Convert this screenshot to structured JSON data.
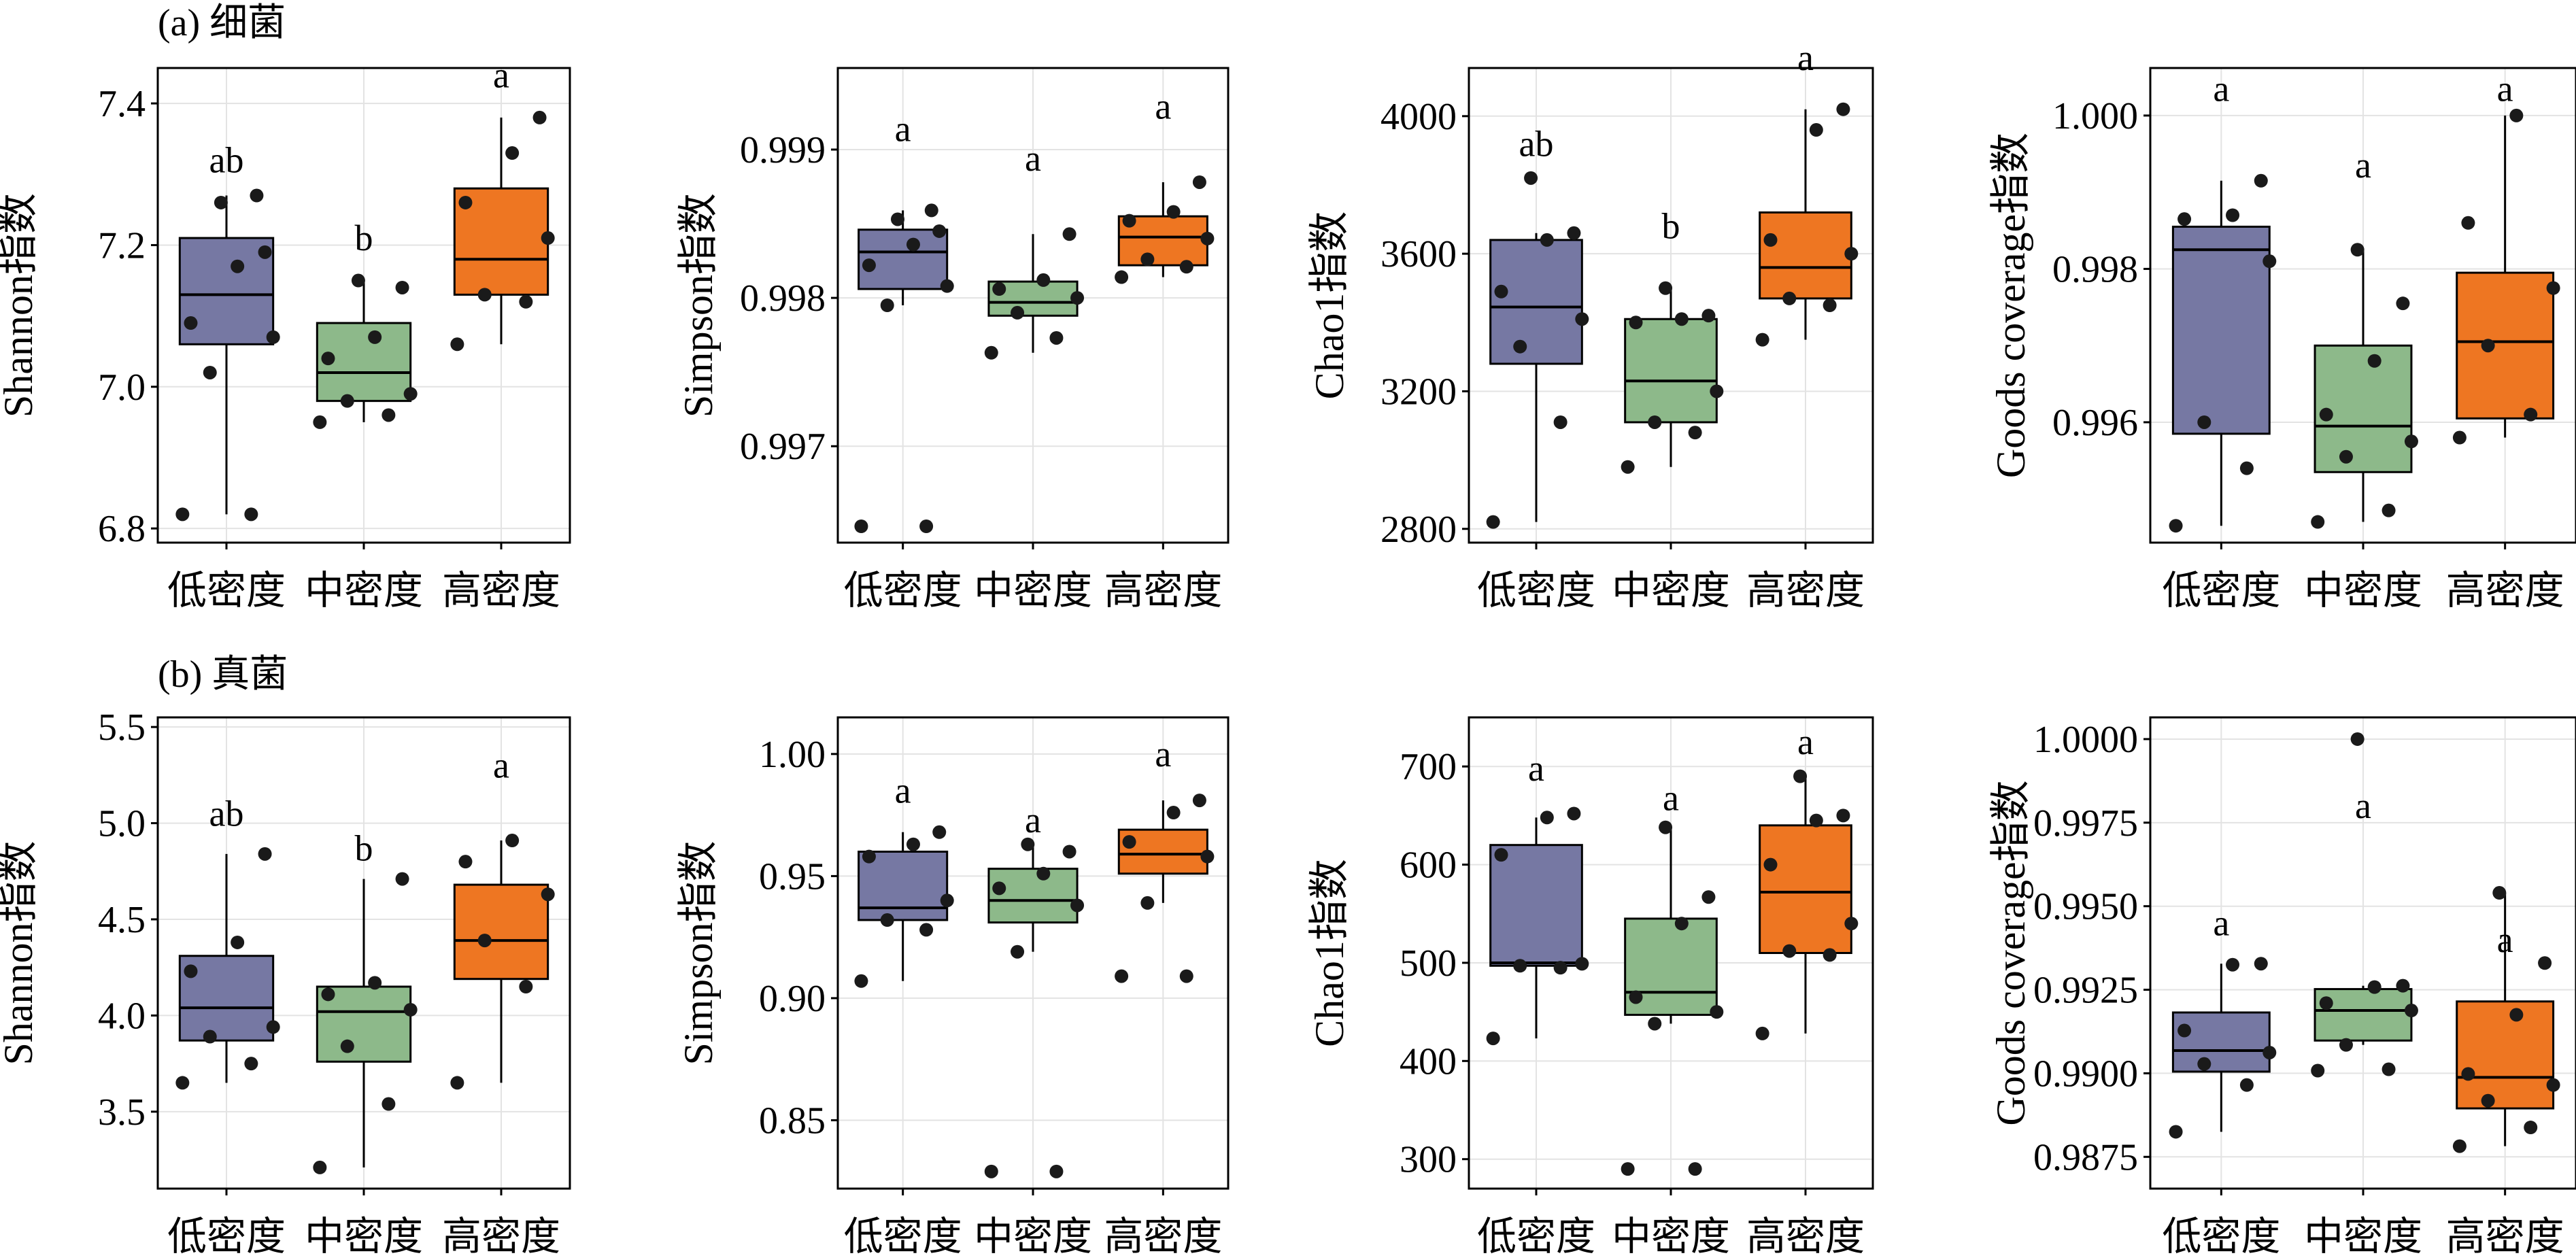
{
  "row_titles": [
    "(a) 细菌",
    "(b) 真菌"
  ],
  "colors": {
    "low": "#7678A3",
    "mid": "#8DB98A",
    "high": "#EE7622",
    "grid": "#e3e3e3",
    "point": "#1a1a1a"
  },
  "chart_data": [
    {
      "type": "box",
      "row": 0,
      "col": 0,
      "ylabel": "Shannon指数",
      "categories": [
        "低密度",
        "中密度",
        "高密度"
      ],
      "ylim": [
        6.78,
        7.45
      ],
      "yticks": [
        6.8,
        7.0,
        7.2,
        7.4
      ],
      "yticklabels": [
        "6.8",
        "7.0",
        "7.2",
        "7.4"
      ],
      "boxes": [
        {
          "q1": 7.06,
          "median": 7.13,
          "q3": 7.21,
          "whisker_low": 6.82,
          "whisker_high": 7.27,
          "letter": "ab",
          "letter_y": 7.32,
          "points": [
            6.82,
            6.82,
            7.02,
            7.07,
            7.09,
            7.17,
            7.19,
            7.26,
            7.27
          ]
        },
        {
          "q1": 6.98,
          "median": 7.02,
          "q3": 7.09,
          "whisker_low": 6.95,
          "whisker_high": 7.15,
          "letter": "b",
          "letter_y": 7.21,
          "points": [
            6.95,
            6.96,
            6.98,
            6.99,
            7.04,
            7.07,
            7.14,
            7.15
          ]
        },
        {
          "q1": 7.13,
          "median": 7.18,
          "q3": 7.28,
          "whisker_low": 7.06,
          "whisker_high": 7.38,
          "letter": "a",
          "letter_y": 7.44,
          "points": [
            7.06,
            7.12,
            7.13,
            7.21,
            7.26,
            7.33,
            7.38
          ]
        }
      ]
    },
    {
      "type": "box",
      "row": 0,
      "col": 1,
      "ylabel": "Simpson指数",
      "categories": [
        "低密度",
        "中密度",
        "高密度"
      ],
      "ylim": [
        0.99635,
        0.99955
      ],
      "yticks": [
        0.997,
        0.998,
        0.999
      ],
      "yticklabels": [
        "0.997",
        "0.998",
        "0.999"
      ],
      "boxes": [
        {
          "q1": 0.99806,
          "median": 0.99831,
          "q3": 0.99846,
          "whisker_low": 0.99795,
          "whisker_high": 0.99859,
          "letter": "a",
          "letter_y": 0.99914,
          "points": [
            0.99646,
            0.99646,
            0.99795,
            0.99808,
            0.99822,
            0.99836,
            0.99845,
            0.99853,
            0.99859
          ]
        },
        {
          "q1": 0.99788,
          "median": 0.99797,
          "q3": 0.99811,
          "whisker_low": 0.99763,
          "whisker_high": 0.99843,
          "letter": "a",
          "letter_y": 0.99894,
          "points": [
            0.99763,
            0.99773,
            0.9979,
            0.998,
            0.99806,
            0.99812,
            0.99843
          ]
        },
        {
          "q1": 0.99822,
          "median": 0.99841,
          "q3": 0.99855,
          "whisker_low": 0.99814,
          "whisker_high": 0.99878,
          "letter": "a",
          "letter_y": 0.99929,
          "points": [
            0.99814,
            0.99821,
            0.99826,
            0.9984,
            0.99852,
            0.99858,
            0.99878
          ]
        }
      ]
    },
    {
      "type": "box",
      "row": 0,
      "col": 2,
      "ylabel": "Chao1指数",
      "categories": [
        "低密度",
        "中密度",
        "高密度"
      ],
      "ylim": [
        2760,
        4140
      ],
      "yticks": [
        2800,
        3200,
        3600,
        4000
      ],
      "yticklabels": [
        "2800",
        "3200",
        "3600",
        "4000"
      ],
      "boxes": [
        {
          "q1": 3280,
          "median": 3445,
          "q3": 3640,
          "whisker_low": 2820,
          "whisker_high": 3660,
          "letter": "ab",
          "letter_y": 3920,
          "points": [
            2820,
            3110,
            3330,
            3410,
            3490,
            3640,
            3660,
            3820
          ]
        },
        {
          "q1": 3110,
          "median": 3230,
          "q3": 3410,
          "whisker_low": 2980,
          "whisker_high": 3500,
          "letter": "b",
          "letter_y": 3680,
          "points": [
            2980,
            3080,
            3110,
            3200,
            3400,
            3410,
            3420,
            3500
          ]
        },
        {
          "q1": 3470,
          "median": 3560,
          "q3": 3720,
          "whisker_low": 3350,
          "whisker_high": 4020,
          "letter": "a",
          "letter_y": 4170,
          "points": [
            3350,
            3450,
            3470,
            3600,
            3640,
            3960,
            4020
          ]
        }
      ]
    },
    {
      "type": "box",
      "row": 0,
      "col": 3,
      "ylabel": "Goods coverage指数",
      "categories": [
        "低密度",
        "中密度",
        "高密度"
      ],
      "ylim": [
        0.99443,
        1.00062
      ],
      "yticks": [
        0.996,
        0.998,
        1.0
      ],
      "yticklabels": [
        "0.996",
        "0.998",
        "1.000"
      ],
      "boxes": [
        {
          "q1": 0.99585,
          "median": 0.99825,
          "q3": 0.99855,
          "whisker_low": 0.99465,
          "whisker_high": 0.99915,
          "letter": "a",
          "letter_y": 1.00035,
          "points": [
            0.99465,
            0.9954,
            0.996,
            0.9981,
            0.99865,
            0.9987,
            0.99915
          ]
        },
        {
          "q1": 0.99535,
          "median": 0.99595,
          "q3": 0.997,
          "whisker_low": 0.9947,
          "whisker_high": 0.99825,
          "letter": "a",
          "letter_y": 0.99935,
          "points": [
            0.9947,
            0.99485,
            0.99555,
            0.99575,
            0.9961,
            0.9968,
            0.99755,
            0.99825
          ]
        },
        {
          "q1": 0.99605,
          "median": 0.99705,
          "q3": 0.99795,
          "whisker_low": 0.9958,
          "whisker_high": 1.0,
          "letter": "a",
          "letter_y": 1.00035,
          "points": [
            0.9958,
            0.9961,
            0.997,
            0.99775,
            0.9986,
            1.0
          ]
        }
      ]
    },
    {
      "type": "box",
      "row": 1,
      "col": 0,
      "ylabel": "Shannon指数",
      "categories": [
        "低密度",
        "中密度",
        "高密度"
      ],
      "ylim": [
        3.1,
        5.55
      ],
      "yticks": [
        3.5,
        4.0,
        4.5,
        5.0,
        5.5
      ],
      "yticklabels": [
        "3.5",
        "4.0",
        "4.5",
        "5.0",
        "5.5"
      ],
      "boxes": [
        {
          "q1": 3.87,
          "median": 4.04,
          "q3": 4.31,
          "whisker_low": 3.65,
          "whisker_high": 4.84,
          "letter": "ab",
          "letter_y": 5.05,
          "points": [
            3.65,
            3.75,
            3.89,
            3.94,
            4.23,
            4.38,
            4.84
          ]
        },
        {
          "q1": 3.76,
          "median": 4.02,
          "q3": 4.15,
          "whisker_low": 3.21,
          "whisker_high": 4.71,
          "letter": "b",
          "letter_y": 4.87,
          "points": [
            3.21,
            3.54,
            3.84,
            4.03,
            4.11,
            4.17,
            4.71
          ]
        },
        {
          "q1": 4.19,
          "median": 4.39,
          "q3": 4.68,
          "whisker_low": 3.65,
          "whisker_high": 4.91,
          "letter": "a",
          "letter_y": 5.3,
          "points": [
            3.65,
            4.15,
            4.39,
            4.63,
            4.8,
            4.91
          ]
        }
      ]
    },
    {
      "type": "box",
      "row": 1,
      "col": 1,
      "ylabel": "Simpson指数",
      "categories": [
        "低密度",
        "中密度",
        "高密度"
      ],
      "ylim": [
        0.822,
        1.015
      ],
      "yticks": [
        0.85,
        0.9,
        0.95,
        1.0
      ],
      "yticklabels": [
        "0.85",
        "0.90",
        "0.95",
        "1.00"
      ],
      "boxes": [
        {
          "q1": 0.932,
          "median": 0.937,
          "q3": 0.96,
          "whisker_low": 0.907,
          "whisker_high": 0.968,
          "letter": "a",
          "letter_y": 0.985,
          "points": [
            0.907,
            0.928,
            0.932,
            0.94,
            0.958,
            0.963,
            0.968
          ]
        },
        {
          "q1": 0.931,
          "median": 0.94,
          "q3": 0.953,
          "whisker_low": 0.919,
          "whisker_high": 0.963,
          "letter": "a",
          "letter_y": 0.973,
          "points": [
            0.829,
            0.829,
            0.919,
            0.938,
            0.945,
            0.951,
            0.96,
            0.963
          ]
        },
        {
          "q1": 0.951,
          "median": 0.959,
          "q3": 0.969,
          "whisker_low": 0.939,
          "whisker_high": 0.981,
          "letter": "a",
          "letter_y": 1.0,
          "points": [
            0.909,
            0.909,
            0.939,
            0.958,
            0.964,
            0.976,
            0.981
          ]
        }
      ]
    },
    {
      "type": "box",
      "row": 1,
      "col": 2,
      "ylabel": "Chao1指数",
      "categories": [
        "低密度",
        "中密度",
        "高密度"
      ],
      "ylim": [
        270,
        750
      ],
      "yticks": [
        300,
        400,
        500,
        600,
        700
      ],
      "yticklabels": [
        "300",
        "400",
        "500",
        "600",
        "700"
      ],
      "boxes": [
        {
          "q1": 497,
          "median": 500,
          "q3": 620,
          "whisker_low": 423,
          "whisker_high": 648,
          "letter": "a",
          "letter_y": 698,
          "points": [
            423,
            495,
            497,
            499,
            610,
            648,
            652
          ]
        },
        {
          "q1": 447,
          "median": 470,
          "q3": 545,
          "whisker_low": 438,
          "whisker_high": 638,
          "letter": "a",
          "letter_y": 668,
          "points": [
            290,
            290,
            438,
            450,
            465,
            540,
            567,
            638
          ]
        },
        {
          "q1": 510,
          "median": 572,
          "q3": 640,
          "whisker_low": 428,
          "whisker_high": 690,
          "letter": "a",
          "letter_y": 725,
          "points": [
            428,
            508,
            512,
            540,
            600,
            645,
            650,
            690
          ]
        }
      ]
    },
    {
      "type": "box",
      "row": 1,
      "col": 3,
      "ylabel": "Goods coverage指数",
      "categories": [
        "低密度",
        "中密度",
        "高密度"
      ],
      "ylim": [
        0.98655,
        1.00065
      ],
      "yticks": [
        0.9875,
        0.99,
        0.9925,
        0.995,
        0.9975,
        1.0
      ],
      "yticklabels": [
        "0.9875",
        "0.9900",
        "0.9925",
        "0.9950",
        "0.9975",
        "1.0000"
      ],
      "boxes": [
        {
          "q1": 0.99005,
          "median": 0.99068,
          "q3": 0.99182,
          "whisker_low": 0.98825,
          "whisker_high": 0.99328,
          "letter": "a",
          "letter_y": 0.9945,
          "points": [
            0.98825,
            0.98965,
            0.99028,
            0.99062,
            0.99128,
            0.99325,
            0.99328
          ]
        },
        {
          "q1": 0.99098,
          "median": 0.99188,
          "q3": 0.99252,
          "whisker_low": 0.99085,
          "whisker_high": 0.99262,
          "letter": "a",
          "letter_y": 0.998,
          "points": [
            0.99008,
            0.99012,
            0.99085,
            0.99188,
            0.9921,
            0.99258,
            0.99262,
            1.0
          ]
        },
        {
          "q1": 0.98895,
          "median": 0.98988,
          "q3": 0.99215,
          "whisker_low": 0.98782,
          "whisker_high": 0.9954,
          "letter": "a",
          "letter_y": 0.994,
          "points": [
            0.98782,
            0.98838,
            0.98918,
            0.98965,
            0.98998,
            0.99175,
            0.9933,
            0.9954
          ]
        }
      ]
    }
  ]
}
